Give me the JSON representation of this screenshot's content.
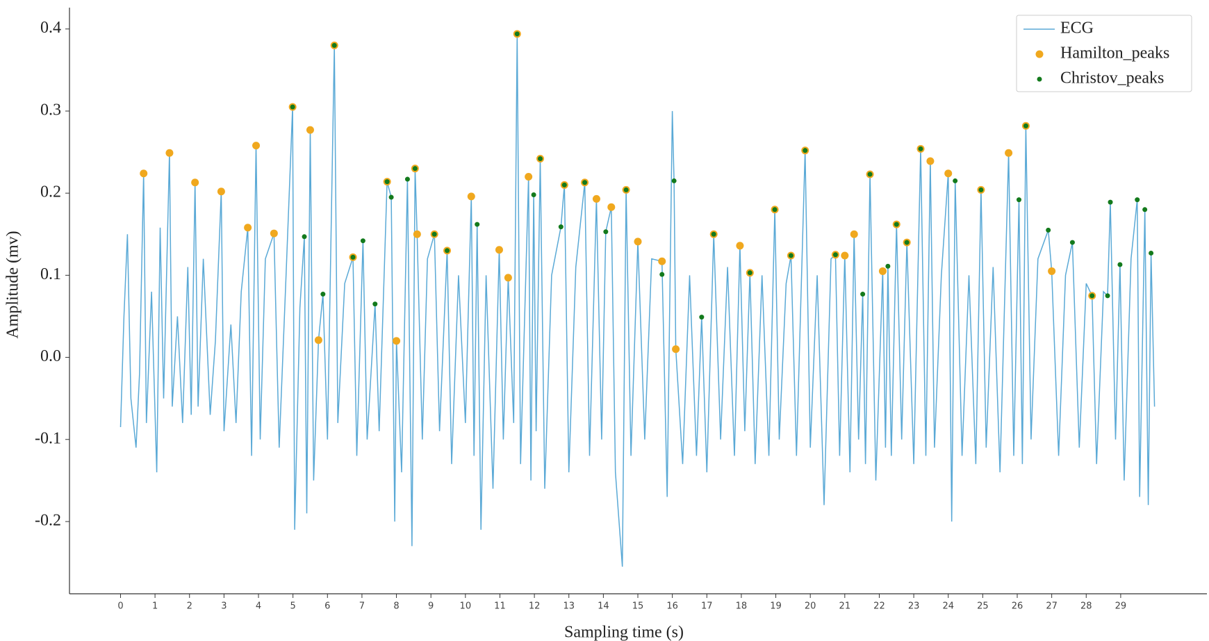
{
  "chart_data": {
    "type": "line",
    "xlabel": "Sampling time (s)",
    "ylabel": "Amplitude (mv)",
    "xlim": [
      -1.48,
      31.5
    ],
    "ylim": [
      -0.288,
      0.426
    ],
    "xticks": [
      0,
      1,
      2,
      3,
      4,
      5,
      6,
      7,
      8,
      9,
      10,
      11,
      12,
      13,
      14,
      15,
      16,
      17,
      18,
      19,
      20,
      21,
      22,
      23,
      24,
      25,
      26,
      27,
      28,
      29
    ],
    "yticks": [
      -0.2,
      -0.1,
      {
        "value": 0,
        "label": "0.0"
      },
      0.1,
      0.2,
      0.3,
      0.4
    ],
    "legend": "upper right",
    "series": [
      {
        "name": "ECG",
        "type": "line",
        "color": "#5aa9d6",
        "x": [
          0,
          0.1,
          0.2,
          0.3,
          0.45,
          0.55,
          0.67,
          0.75,
          0.9,
          1.05,
          1.15,
          1.25,
          1.42,
          1.5,
          1.65,
          1.8,
          1.95,
          2.05,
          2.16,
          2.25,
          2.4,
          2.6,
          2.75,
          2.92,
          3.0,
          3.2,
          3.35,
          3.5,
          3.69,
          3.8,
          3.93,
          4.05,
          4.2,
          4.45,
          4.6,
          4.8,
          4.99,
          5.05,
          5.2,
          5.33,
          5.4,
          5.5,
          5.6,
          5.74,
          5.87,
          6.0,
          6.2,
          6.3,
          6.5,
          6.74,
          6.85,
          7.03,
          7.15,
          7.38,
          7.5,
          7.73,
          7.85,
          7.95,
          8.0,
          8.15,
          8.32,
          8.45,
          8.54,
          8.6,
          8.75,
          8.9,
          9.1,
          9.25,
          9.47,
          9.6,
          9.8,
          10.0,
          10.17,
          10.25,
          10.34,
          10.45,
          10.6,
          10.8,
          10.98,
          11.1,
          11.24,
          11.4,
          11.5,
          11.6,
          11.83,
          11.9,
          11.98,
          12.05,
          12.17,
          12.3,
          12.5,
          12.77,
          12.87,
          13.0,
          13.2,
          13.46,
          13.6,
          13.8,
          13.95,
          14.07,
          14.23,
          14.35,
          14.55,
          14.66,
          14.8,
          15.0,
          15.2,
          15.4,
          15.7,
          15.85,
          16.0,
          16.05,
          16.1,
          16.3,
          16.5,
          16.7,
          16.85,
          17.0,
          17.2,
          17.4,
          17.6,
          17.8,
          17.96,
          18.1,
          18.25,
          18.4,
          18.6,
          18.8,
          18.97,
          19.1,
          19.3,
          19.44,
          19.6,
          19.85,
          20.0,
          20.2,
          20.4,
          20.6,
          20.73,
          20.85,
          21.0,
          21.15,
          21.27,
          21.4,
          21.52,
          21.6,
          21.73,
          21.9,
          22.1,
          22.18,
          22.25,
          22.35,
          22.5,
          22.65,
          22.8,
          23.0,
          23.2,
          23.35,
          23.48,
          23.6,
          23.8,
          24.0,
          24.1,
          24.2,
          24.4,
          24.6,
          24.8,
          24.95,
          25.1,
          25.3,
          25.5,
          25.75,
          25.9,
          26.05,
          26.15,
          26.25,
          26.4,
          26.6,
          26.9,
          27.0,
          27.2,
          27.4,
          27.6,
          27.8,
          28.0,
          28.17,
          28.3,
          28.5,
          28.62,
          28.7,
          28.85,
          28.98,
          29.1,
          29.3,
          29.48,
          29.55,
          29.7,
          29.8,
          29.88,
          29.98
        ],
        "values": [
          -0.085,
          0.05,
          0.15,
          -0.05,
          -0.11,
          -0.02,
          0.224,
          -0.08,
          0.08,
          -0.14,
          0.158,
          -0.05,
          0.249,
          -0.06,
          0.05,
          -0.08,
          0.11,
          -0.07,
          0.213,
          -0.06,
          0.12,
          -0.07,
          0.02,
          0.202,
          -0.09,
          0.04,
          -0.08,
          0.08,
          0.158,
          -0.12,
          0.258,
          -0.1,
          0.12,
          0.151,
          -0.11,
          0.1,
          0.305,
          -0.21,
          0.06,
          0.147,
          -0.19,
          0.277,
          -0.15,
          0.021,
          0.077,
          -0.1,
          0.38,
          -0.08,
          0.09,
          0.122,
          -0.12,
          0.142,
          -0.1,
          0.065,
          -0.09,
          0.214,
          0.195,
          -0.2,
          0.02,
          -0.14,
          0.217,
          -0.23,
          0.23,
          0.15,
          -0.1,
          0.12,
          0.15,
          -0.09,
          0.13,
          -0.13,
          0.1,
          -0.08,
          0.196,
          -0.12,
          0.162,
          -0.21,
          0.1,
          -0.16,
          0.131,
          -0.1,
          0.097,
          -0.08,
          0.394,
          -0.13,
          0.22,
          -0.15,
          0.198,
          -0.09,
          0.242,
          -0.16,
          0.1,
          0.159,
          0.21,
          -0.14,
          0.11,
          0.213,
          -0.12,
          0.193,
          -0.1,
          0.153,
          0.183,
          -0.14,
          -0.255,
          0.204,
          -0.12,
          0.141,
          -0.1,
          0.12,
          0.117,
          -0.17,
          0.3,
          0.215,
          0.01,
          -0.13,
          0.1,
          -0.12,
          0.049,
          -0.14,
          0.15,
          -0.1,
          0.11,
          -0.12,
          0.136,
          -0.09,
          0.103,
          -0.13,
          0.1,
          -0.12,
          0.18,
          -0.1,
          0.09,
          0.124,
          -0.12,
          0.252,
          -0.11,
          0.1,
          -0.18,
          0.12,
          0.125,
          -0.12,
          0.124,
          -0.14,
          0.15,
          -0.1,
          0.077,
          -0.13,
          0.223,
          -0.15,
          0.105,
          -0.11,
          0.111,
          -0.12,
          0.162,
          -0.1,
          0.14,
          -0.13,
          0.254,
          -0.12,
          0.239,
          -0.11,
          0.1,
          0.224,
          -0.2,
          0.215,
          -0.12,
          0.1,
          -0.13,
          0.204,
          -0.11,
          0.11,
          -0.14,
          0.249,
          -0.12,
          0.192,
          -0.13,
          0.282,
          -0.1,
          0.12,
          0.155,
          0.105,
          -0.12,
          0.1,
          0.14,
          -0.11,
          0.09,
          0.075,
          -0.13,
          0.08,
          0.075,
          0.189,
          -0.1,
          0.113,
          -0.15,
          0.12,
          0.192,
          -0.17,
          0.18,
          -0.18,
          0.127,
          -0.06
        ]
      },
      {
        "name": "Hamilton_peaks",
        "type": "scatter",
        "color": "#f0a81e",
        "x": [
          0.67,
          1.42,
          2.16,
          2.92,
          3.69,
          3.93,
          4.45,
          4.99,
          5.5,
          5.74,
          6.2,
          6.74,
          7.73,
          8.0,
          8.54,
          8.6,
          9.1,
          9.47,
          10.17,
          10.98,
          11.24,
          11.5,
          11.83,
          12.17,
          12.87,
          13.46,
          13.8,
          14.23,
          14.66,
          15.0,
          15.7,
          16.1,
          17.2,
          17.96,
          18.25,
          18.97,
          19.44,
          19.85,
          20.73,
          21.0,
          21.27,
          21.73,
          22.1,
          22.5,
          22.8,
          23.2,
          23.48,
          24.0,
          24.95,
          25.75,
          26.25,
          27.0,
          28.17
        ],
        "values": [
          0.224,
          0.249,
          0.213,
          0.202,
          0.158,
          0.258,
          0.151,
          0.305,
          0.277,
          0.021,
          0.38,
          0.122,
          0.214,
          0.02,
          0.23,
          0.15,
          0.15,
          0.13,
          0.196,
          0.131,
          0.097,
          0.394,
          0.22,
          0.242,
          0.21,
          0.213,
          0.193,
          0.183,
          0.204,
          0.141,
          0.117,
          0.01,
          0.15,
          0.136,
          0.103,
          0.18,
          0.124,
          0.252,
          0.125,
          0.124,
          0.15,
          0.223,
          0.105,
          0.162,
          0.14,
          0.254,
          0.239,
          0.224,
          0.204,
          0.249,
          0.282,
          0.105,
          0.075
        ]
      },
      {
        "name": "Christov_peaks",
        "type": "scatter",
        "color": "#137a1c",
        "x": [
          4.99,
          5.33,
          5.87,
          6.2,
          6.74,
          7.03,
          7.38,
          7.73,
          7.85,
          8.32,
          8.54,
          9.1,
          9.47,
          10.34,
          11.5,
          11.98,
          12.17,
          12.77,
          12.87,
          13.46,
          14.07,
          14.66,
          15.7,
          16.05,
          16.85,
          17.2,
          18.25,
          18.97,
          19.44,
          19.85,
          20.73,
          21.52,
          21.73,
          22.25,
          22.5,
          22.8,
          23.2,
          24.2,
          24.95,
          26.05,
          26.25,
          26.9,
          27.6,
          28.17,
          28.62,
          28.7,
          28.98,
          29.48,
          29.7,
          29.88
        ],
        "values": [
          0.305,
          0.147,
          0.077,
          0.38,
          0.122,
          0.142,
          0.065,
          0.214,
          0.195,
          0.217,
          0.23,
          0.15,
          0.13,
          0.162,
          0.394,
          0.198,
          0.242,
          0.159,
          0.21,
          0.213,
          0.153,
          0.204,
          0.101,
          0.215,
          0.049,
          0.15,
          0.103,
          0.18,
          0.124,
          0.252,
          0.125,
          0.077,
          0.223,
          0.111,
          0.162,
          0.14,
          0.254,
          0.215,
          0.204,
          0.192,
          0.282,
          0.155,
          0.14,
          0.075,
          0.075,
          0.189,
          0.113,
          0.192,
          0.18,
          0.127
        ]
      }
    ]
  }
}
